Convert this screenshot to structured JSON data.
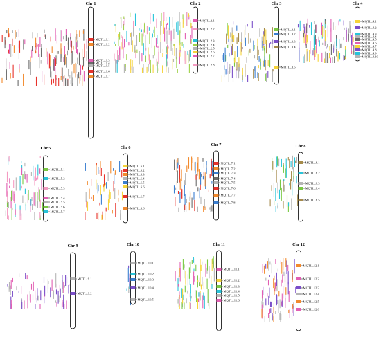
{
  "colors": {
    "chromosome_outline": "#000000",
    "qtl_palette": [
      "#e8322b",
      "#f28a2e",
      "#f6d43a",
      "#7ac943",
      "#2bb673",
      "#29c4d9",
      "#3b7fd1",
      "#7b4fc9",
      "#e25fb3",
      "#b5b5b5",
      "#6b6b6b",
      "#a58a4a",
      "#9fd24a",
      "#f49ac1"
    ]
  },
  "chromosomes": [
    {
      "title": "Chr 1",
      "mqtls": [
        "MQTL_1.1",
        "MQTL_1.2",
        "MQTL_1.3",
        "MQTL_1.4",
        "MQTL_1.5",
        "MQTL_1.6",
        "MQTL_1.7"
      ]
    },
    {
      "title": "Chr 2",
      "mqtls": [
        "MQTL_2.1",
        "MQTL_2.2",
        "MQTL_2.3",
        "MQTL_2.4",
        "MQTL_2.5",
        "MQTL_2.6",
        "MQTL_2.7",
        "MQTL_2.8"
      ]
    },
    {
      "title": "Chr 3",
      "mqtls": [
        "MQTL_3.1",
        "MQTL_3.2",
        "MQTL_3.3",
        "MQTL_3.4",
        "MQTL_3.5"
      ]
    },
    {
      "title": "Chr 4",
      "mqtls": [
        "MQTL_4.1",
        "MQTL_4.2",
        "MQTL_4.3",
        "MQTL_4.4",
        "MQTL_4.5",
        "MQTL_4.6",
        "MQTL_4.7",
        "MQTL_4.8",
        "MQTL_4.9",
        "MQTL_4.10"
      ]
    },
    {
      "title": "Chr 5",
      "mqtls": [
        "MQTL_5.1",
        "MQTL_5.2",
        "MQTL_5.3",
        "MQTL_5.4",
        "MQTL_5.5",
        "MQTL_5.6",
        "MQTL_5.7"
      ]
    },
    {
      "title": "Chr 6",
      "mqtls": [
        "MQTL_6.1",
        "MQTL_6.2",
        "MQTL_6.3",
        "MQTL_6.4",
        "MQTL_6.5",
        "MQTL_6.6",
        "MQTL_6.7",
        "MQTL_6.8"
      ]
    },
    {
      "title": "Chr 7",
      "mqtls": [
        "MQTL_7.1",
        "MQTL_7.2",
        "MQTL_7.3",
        "MQTL_7.4",
        "MQTL_7.5",
        "MQTL_7.6",
        "MQTL_7.7",
        "MQTL_7.8"
      ]
    },
    {
      "title": "Chr 8",
      "mqtls": [
        "MQTL_8.1",
        "MQTL_8.2",
        "MQTL_8.3",
        "MQTL_8.4",
        "MQTL_8.5"
      ]
    },
    {
      "title": "Chr 9",
      "mqtls": [
        "MQTL_9.1",
        "MQTL_9.2"
      ]
    },
    {
      "title": "Chr 10",
      "mqtls": [
        "MQTL_10.1",
        "MQTL_10.2",
        "MQTL_10.3",
        "MQTL_10.4",
        "MQTL_10.5"
      ]
    },
    {
      "title": "Chr 11",
      "mqtls": [
        "MQTL_11.1",
        "MQTL_11.2",
        "MQTL_11.3",
        "MQTL_11.4",
        "MQTL_11.5",
        "MQTL_11.6"
      ]
    },
    {
      "title": "Chr 12",
      "mqtls": [
        "MQTL_12.1",
        "MQTL_12.2",
        "MQTL_12.3",
        "MQTL_12.4",
        "MQTL_12.5",
        "MQTL_12.6"
      ]
    }
  ]
}
